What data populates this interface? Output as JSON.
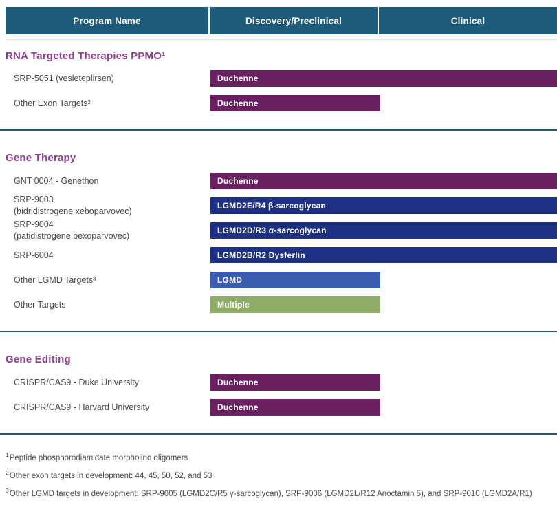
{
  "header": {
    "bg_color": "#1E5B7B",
    "columns": [
      "Program Name",
      "Discovery/Preclinical",
      "Clinical"
    ]
  },
  "colors": {
    "header_bg": "#1E5B7B",
    "divider": "#1E5B7B",
    "section_title": "#8E3E8F",
    "label_text": "#4A4A48",
    "purple_bar": "#6A2161",
    "navy_bar": "#1F3185",
    "blue_bar": "#3A5DB2",
    "green_bar": "#8FAC69"
  },
  "chart_data": {
    "type": "bar",
    "orientation": "horizontal",
    "stages": [
      "Discovery/Preclinical",
      "Clinical"
    ],
    "sections": [
      {
        "title": "RNA Targeted Therapies PPMO¹",
        "rows": [
          {
            "program": "SRP-5051 (vesleteplirsen)",
            "bar_label": "Duchenne",
            "stage": "Clinical",
            "bar_color": "#6A2161"
          },
          {
            "program": "Other Exon Targets²",
            "bar_label": "Duchenne",
            "stage": "Discovery/Preclinical",
            "bar_color": "#6A2161"
          }
        ]
      },
      {
        "title": "Gene Therapy",
        "rows": [
          {
            "program": "GNT 0004 - Genethon",
            "bar_label": "Duchenne",
            "stage": "Clinical",
            "bar_color": "#6A2161"
          },
          {
            "program": "SRP-9003",
            "program_line2": "(bidridistrogene xeboparvovec)",
            "bar_label": "LGMD2E/R4 β-sarcoglycan",
            "stage": "Clinical",
            "bar_color": "#1F3185"
          },
          {
            "program": "SRP-9004",
            "program_line2": "(patidistrogene bexoparvovec)",
            "bar_label": "LGMD2D/R3 α-sarcoglycan",
            "stage": "Clinical",
            "bar_color": "#1F3185"
          },
          {
            "program": "SRP-6004",
            "bar_label": "LGMD2B/R2 Dysferlin",
            "stage": "Clinical",
            "bar_color": "#1F3185"
          },
          {
            "program": "Other LGMD Targets³",
            "bar_label": "LGMD",
            "stage": "Discovery/Preclinical",
            "bar_color": "#3A5DB2"
          },
          {
            "program": "Other Targets",
            "bar_label": "Multiple",
            "stage": "Discovery/Preclinical",
            "bar_color": "#8FAC69"
          }
        ]
      },
      {
        "title": "Gene Editing",
        "rows": [
          {
            "program": "CRISPR/CAS9 - Duke University",
            "bar_label": "Duchenne",
            "stage": "Discovery/Preclinical",
            "bar_color": "#6A2161"
          },
          {
            "program": "CRISPR/CAS9 - Harvard University",
            "bar_label": "Duchenne",
            "stage": "Discovery/Preclinical",
            "bar_color": "#6A2161"
          }
        ]
      }
    ]
  },
  "footnotes": [
    {
      "sup": "1",
      "text": "Peptide phosphorodiamidate morpholino oligomers"
    },
    {
      "sup": "2",
      "text": "Other exon targets in development: 44, 45, 50, 52, and 53"
    },
    {
      "sup": "3",
      "text": "Other LGMD targets in development: SRP-9005 (LGMD2C/R5 γ-sarcoglycan), SRP-9006 (LGMD2L/R12 Anoctamin 5), and SRP-9010 (LGMD2A/R1)"
    }
  ]
}
